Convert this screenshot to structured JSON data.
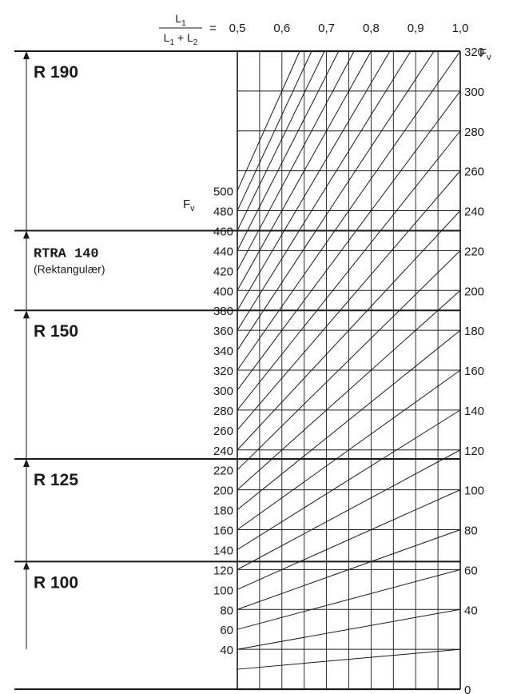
{
  "chart_data": {
    "type": "line",
    "title": "",
    "xlabel": {
      "numerator": "L",
      "numerator_sub": "1",
      "denominator_a": "L",
      "denominator_a_sub": "1",
      "plus": " + ",
      "denominator_b": "L",
      "denominator_b_sub": "2",
      "equals": "="
    },
    "x_ticks": [
      "0,5",
      "0,6",
      "0,7",
      "0,8",
      "0,9",
      "1,0"
    ],
    "xlim": [
      0.5,
      1.0
    ],
    "right_axis": {
      "label": "F",
      "label_sub": "v",
      "ticks": [
        0,
        20,
        40,
        60,
        80,
        100,
        120,
        140,
        160,
        180,
        200,
        220,
        240,
        260,
        280,
        300,
        320
      ],
      "labels": [
        "0",
        "40",
        "60",
        "80",
        "100",
        "120",
        "140",
        "160",
        "180",
        "200",
        "220",
        "240",
        "260",
        "280",
        "300",
        "320"
      ],
      "label_values": [
        0,
        40,
        60,
        80,
        100,
        120,
        140,
        160,
        180,
        200,
        220,
        240,
        260,
        280,
        300,
        320
      ],
      "ylim": [
        0,
        320
      ]
    },
    "left_axis": {
      "label": "F",
      "label_sub": "v",
      "ticks": [
        "40",
        "60",
        "80",
        "100",
        "120",
        "140",
        "160",
        "180",
        "200",
        "220",
        "240",
        "260",
        "280",
        "300",
        "320",
        "340",
        "360",
        "380",
        "400",
        "420",
        "440",
        "460",
        "480",
        "500"
      ],
      "values": [
        40,
        60,
        80,
        100,
        120,
        140,
        160,
        180,
        200,
        220,
        240,
        260,
        280,
        300,
        320,
        340,
        360,
        380,
        400,
        420,
        440,
        460,
        480,
        500
      ]
    },
    "line_family": {
      "description_values": "Right value Fv at x = 1.0; left value at x = 0.5 equals twice the right value",
      "right_values": [
        20,
        40,
        60,
        80,
        100,
        120,
        140,
        160,
        180,
        200,
        220,
        240,
        260,
        280,
        300,
        320,
        340,
        360,
        380,
        400,
        420,
        440,
        460,
        480,
        500
      ]
    },
    "categories": [
      {
        "label": "R 190",
        "style": "bold",
        "from": 460,
        "to": 640
      },
      {
        "label": "RTRA 140",
        "note": "(Rektangulær)",
        "style": "mono",
        "from": 380,
        "to": 460
      },
      {
        "label": "R 150",
        "style": "bold",
        "from": 231,
        "to": 380
      },
      {
        "label": "R 125",
        "style": "bold",
        "from": 128,
        "to": 231
      },
      {
        "label": "R 100",
        "style": "bold",
        "from": 40,
        "to": 128
      }
    ],
    "grid": true
  }
}
